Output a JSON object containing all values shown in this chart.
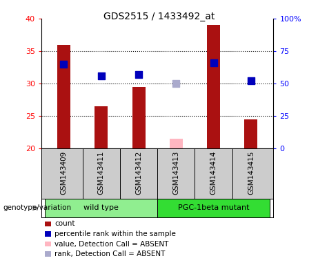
{
  "title": "GDS2515 / 1433492_at",
  "samples": [
    "GSM143409",
    "GSM143411",
    "GSM143412",
    "GSM143413",
    "GSM143414",
    "GSM143415"
  ],
  "count_values": [
    36.0,
    26.5,
    29.5,
    21.5,
    39.0,
    24.5
  ],
  "percentile_values": [
    65,
    56,
    57,
    50,
    66,
    52
  ],
  "absent_flags": [
    false,
    false,
    false,
    true,
    false,
    false
  ],
  "bar_color_present": "#AA1111",
  "bar_color_absent": "#FFB6C1",
  "dot_color_present": "#0000BB",
  "dot_color_absent": "#AAAACC",
  "ylim_left": [
    20,
    40
  ],
  "ylim_right": [
    0,
    100
  ],
  "yticks_left": [
    20,
    25,
    30,
    35,
    40
  ],
  "yticks_right": [
    0,
    25,
    50,
    75,
    100
  ],
  "ytick_labels_right": [
    "0",
    "25",
    "50",
    "75",
    "100%"
  ],
  "group_labels": [
    "wild type",
    "PGC-1beta mutant"
  ],
  "group_ranges": [
    [
      0,
      3
    ],
    [
      3,
      6
    ]
  ],
  "group_color_wt": "#90EE90",
  "group_color_mut": "#33DD33",
  "genotype_label": "genotype/variation",
  "legend_items": [
    {
      "label": "count",
      "color": "#AA1111"
    },
    {
      "label": "percentile rank within the sample",
      "color": "#0000BB"
    },
    {
      "label": "value, Detection Call = ABSENT",
      "color": "#FFB6C1"
    },
    {
      "label": "rank, Detection Call = ABSENT",
      "color": "#AAAACC"
    }
  ],
  "plot_bg_color": "#FFFFFF",
  "label_area_color": "#CCCCCC",
  "bar_width": 0.35
}
